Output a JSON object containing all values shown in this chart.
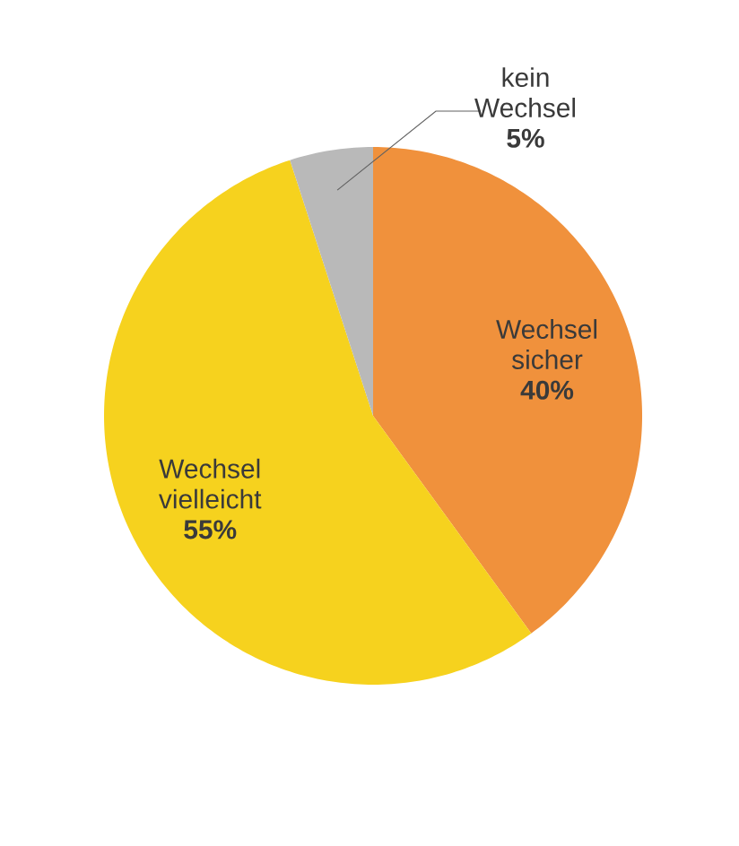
{
  "chart_data": {
    "type": "pie",
    "categories": [
      "Wechsel sicher",
      "Wechsel vielleicht",
      "kein Wechsel"
    ],
    "values": [
      40,
      55,
      5
    ],
    "colors": [
      "#f0913c",
      "#f6d21e",
      "#b9b9b9"
    ],
    "value_labels": [
      "40%",
      "55%",
      "5%"
    ]
  }
}
